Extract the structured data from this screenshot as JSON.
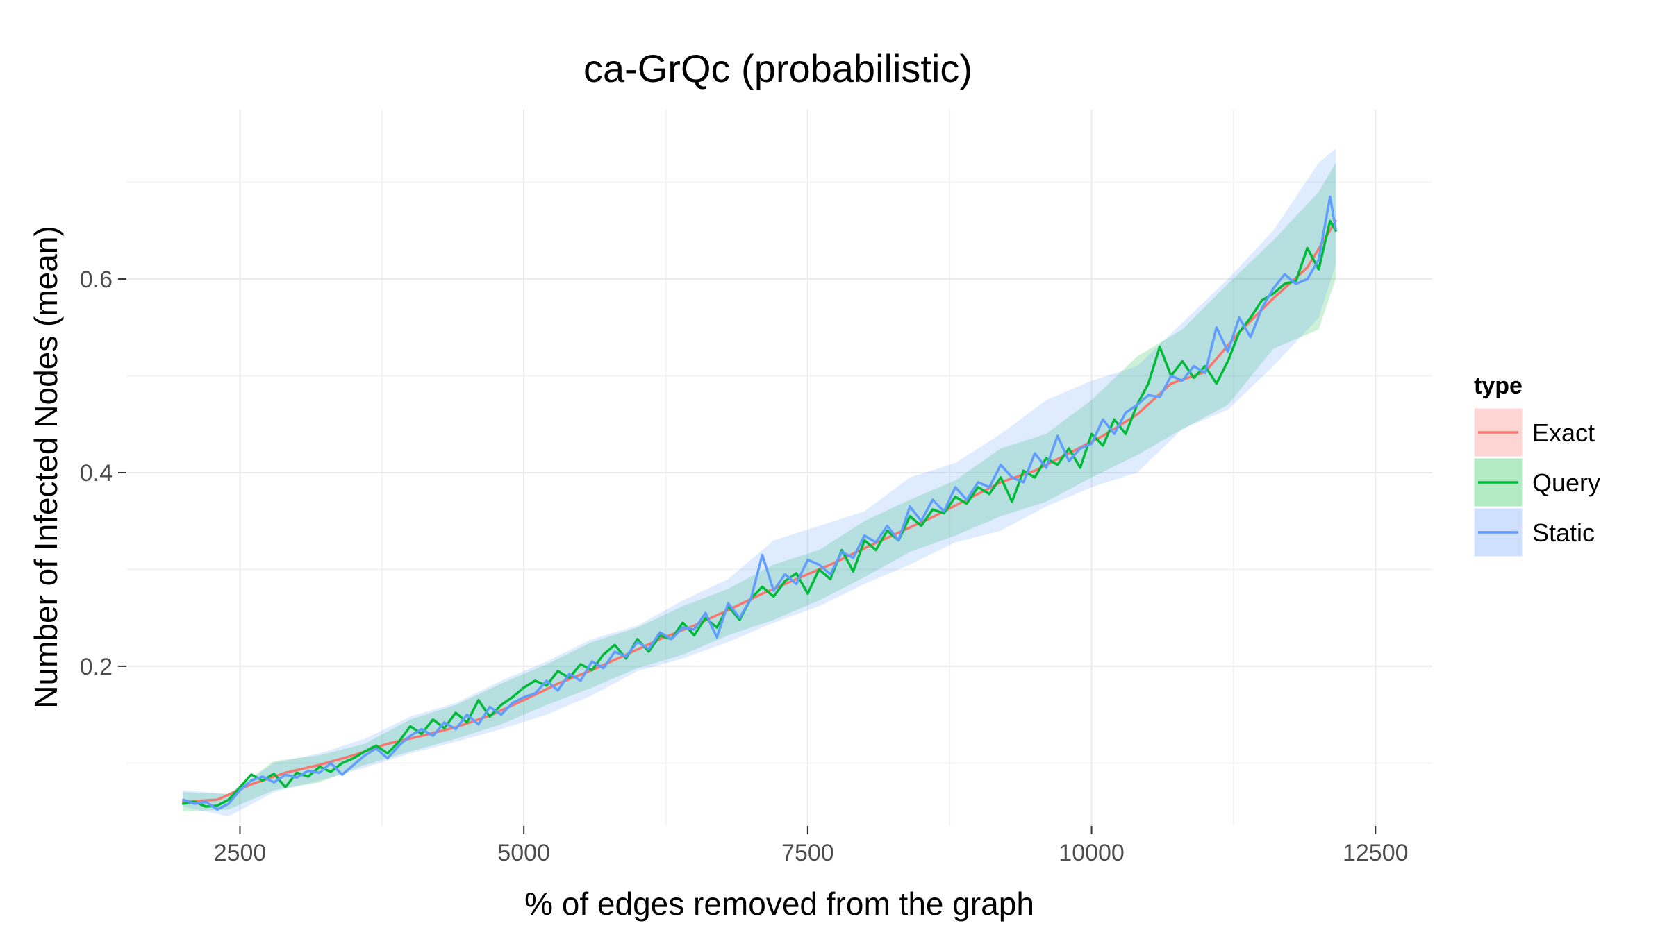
{
  "chart_data": {
    "type": "line",
    "title": "ca-GrQc (probabilistic)",
    "xlabel": "% of edges removed from the graph",
    "ylabel": "Number of Infected Nodes (mean)",
    "xlim": [
      1500,
      13000
    ],
    "ylim": [
      0.035,
      0.775
    ],
    "x_ticks": [
      2500,
      5000,
      7500,
      10000,
      12500
    ],
    "x_tick_labels": [
      "2500",
      "5000",
      "7500",
      "10000",
      "12500"
    ],
    "y_ticks": [
      0.2,
      0.4,
      0.6
    ],
    "y_tick_labels": [
      "0.2",
      "0.4",
      "0.6"
    ],
    "grid": true,
    "legend": {
      "title": "type",
      "position": "right"
    },
    "colors": {
      "Exact": "#F8766D",
      "Query": "#00BA38",
      "Static": "#619CFF"
    },
    "series": [
      {
        "name": "Exact",
        "x": [
          2000,
          2300,
          2600,
          2900,
          3200,
          3500,
          3800,
          4100,
          4400,
          4700,
          5000,
          5300,
          5600,
          5900,
          6200,
          6500,
          6800,
          7100,
          7400,
          7700,
          8000,
          8300,
          8600,
          8900,
          9200,
          9500,
          9800,
          10100,
          10400,
          10700,
          11000,
          11300,
          11600,
          11900,
          12150
        ],
        "y": [
          0.06,
          0.062,
          0.078,
          0.09,
          0.098,
          0.108,
          0.12,
          0.128,
          0.137,
          0.149,
          0.165,
          0.182,
          0.196,
          0.212,
          0.228,
          0.242,
          0.258,
          0.275,
          0.29,
          0.305,
          0.322,
          0.338,
          0.354,
          0.372,
          0.39,
          0.402,
          0.42,
          0.438,
          0.46,
          0.492,
          0.504,
          0.545,
          0.58,
          0.612,
          0.66
        ]
      },
      {
        "name": "Query",
        "x": [
          2000,
          2100,
          2200,
          2300,
          2400,
          2500,
          2600,
          2700,
          2800,
          2900,
          3000,
          3100,
          3200,
          3300,
          3400,
          3500,
          3600,
          3700,
          3800,
          3900,
          4000,
          4100,
          4200,
          4300,
          4400,
          4500,
          4600,
          4700,
          4800,
          4900,
          5000,
          5100,
          5200,
          5300,
          5400,
          5500,
          5600,
          5700,
          5800,
          5900,
          6000,
          6100,
          6200,
          6300,
          6400,
          6500,
          6600,
          6700,
          6800,
          6900,
          7000,
          7100,
          7200,
          7300,
          7400,
          7500,
          7600,
          7700,
          7800,
          7900,
          8000,
          8100,
          8200,
          8300,
          8400,
          8500,
          8600,
          8700,
          8800,
          8900,
          9000,
          9100,
          9200,
          9300,
          9400,
          9500,
          9600,
          9700,
          9800,
          9900,
          10000,
          10100,
          10200,
          10300,
          10400,
          10500,
          10600,
          10700,
          10800,
          10900,
          11000,
          11100,
          11200,
          11300,
          11400,
          11500,
          11600,
          11700,
          11800,
          11900,
          12000,
          12100,
          12150
        ],
        "y": [
          0.058,
          0.06,
          0.055,
          0.056,
          0.062,
          0.075,
          0.088,
          0.082,
          0.089,
          0.075,
          0.09,
          0.086,
          0.096,
          0.091,
          0.1,
          0.105,
          0.112,
          0.118,
          0.11,
          0.122,
          0.138,
          0.13,
          0.145,
          0.136,
          0.152,
          0.142,
          0.165,
          0.148,
          0.16,
          0.168,
          0.178,
          0.185,
          0.18,
          0.195,
          0.188,
          0.202,
          0.196,
          0.212,
          0.222,
          0.208,
          0.228,
          0.215,
          0.232,
          0.228,
          0.245,
          0.232,
          0.25,
          0.24,
          0.262,
          0.248,
          0.27,
          0.282,
          0.272,
          0.288,
          0.296,
          0.275,
          0.3,
          0.29,
          0.32,
          0.298,
          0.33,
          0.32,
          0.34,
          0.33,
          0.355,
          0.345,
          0.362,
          0.358,
          0.375,
          0.368,
          0.385,
          0.378,
          0.395,
          0.37,
          0.402,
          0.395,
          0.415,
          0.408,
          0.425,
          0.405,
          0.44,
          0.428,
          0.455,
          0.44,
          0.47,
          0.492,
          0.53,
          0.5,
          0.515,
          0.498,
          0.51,
          0.492,
          0.515,
          0.545,
          0.56,
          0.578,
          0.585,
          0.595,
          0.598,
          0.632,
          0.61,
          0.66,
          0.65
        ]
      },
      {
        "name": "Static",
        "x": [
          2000,
          2100,
          2200,
          2300,
          2400,
          2500,
          2600,
          2700,
          2800,
          2900,
          3000,
          3100,
          3200,
          3300,
          3400,
          3500,
          3600,
          3700,
          3800,
          3900,
          4000,
          4100,
          4200,
          4300,
          4400,
          4500,
          4600,
          4700,
          4800,
          4900,
          5000,
          5100,
          5200,
          5300,
          5400,
          5500,
          5600,
          5700,
          5800,
          5900,
          6000,
          6100,
          6200,
          6300,
          6400,
          6500,
          6600,
          6700,
          6800,
          6900,
          7000,
          7100,
          7200,
          7300,
          7400,
          7500,
          7600,
          7700,
          7800,
          7900,
          8000,
          8100,
          8200,
          8300,
          8400,
          8500,
          8600,
          8700,
          8800,
          8900,
          9000,
          9100,
          9200,
          9300,
          9400,
          9500,
          9600,
          9700,
          9800,
          9900,
          10000,
          10100,
          10200,
          10300,
          10400,
          10500,
          10600,
          10700,
          10800,
          10900,
          11000,
          11100,
          11200,
          11300,
          11400,
          11500,
          11600,
          11700,
          11800,
          11900,
          12000,
          12100,
          12150
        ],
        "y": [
          0.062,
          0.058,
          0.06,
          0.052,
          0.058,
          0.072,
          0.082,
          0.086,
          0.08,
          0.088,
          0.085,
          0.092,
          0.09,
          0.1,
          0.088,
          0.098,
          0.108,
          0.115,
          0.105,
          0.118,
          0.128,
          0.135,
          0.128,
          0.142,
          0.135,
          0.15,
          0.14,
          0.158,
          0.15,
          0.162,
          0.168,
          0.172,
          0.185,
          0.175,
          0.192,
          0.185,
          0.205,
          0.198,
          0.215,
          0.21,
          0.225,
          0.218,
          0.235,
          0.228,
          0.24,
          0.238,
          0.255,
          0.23,
          0.265,
          0.25,
          0.27,
          0.315,
          0.278,
          0.295,
          0.285,
          0.31,
          0.305,
          0.295,
          0.318,
          0.312,
          0.335,
          0.328,
          0.345,
          0.33,
          0.365,
          0.35,
          0.372,
          0.36,
          0.385,
          0.372,
          0.39,
          0.385,
          0.408,
          0.395,
          0.39,
          0.42,
          0.405,
          0.438,
          0.412,
          0.425,
          0.43,
          0.455,
          0.44,
          0.462,
          0.47,
          0.48,
          0.478,
          0.5,
          0.495,
          0.51,
          0.503,
          0.55,
          0.525,
          0.56,
          0.54,
          0.57,
          0.59,
          0.605,
          0.595,
          0.6,
          0.62,
          0.685,
          0.652
        ]
      }
    ],
    "bands": [
      {
        "name": "Query",
        "x": [
          2000,
          2400,
          2800,
          3200,
          3600,
          4000,
          4400,
          4800,
          5200,
          5600,
          6000,
          6400,
          6800,
          7200,
          7600,
          8000,
          8400,
          8800,
          9200,
          9600,
          10000,
          10400,
          10800,
          11200,
          11600,
          12000,
          12150
        ],
        "lower": [
          0.05,
          0.052,
          0.072,
          0.08,
          0.098,
          0.112,
          0.125,
          0.14,
          0.16,
          0.178,
          0.198,
          0.212,
          0.232,
          0.248,
          0.268,
          0.292,
          0.318,
          0.335,
          0.355,
          0.37,
          0.395,
          0.418,
          0.445,
          0.47,
          0.528,
          0.548,
          0.6
        ],
        "upper": [
          0.07,
          0.068,
          0.102,
          0.108,
          0.12,
          0.145,
          0.16,
          0.182,
          0.202,
          0.225,
          0.24,
          0.262,
          0.28,
          0.305,
          0.32,
          0.35,
          0.372,
          0.392,
          0.425,
          0.44,
          0.475,
          0.52,
          0.548,
          0.595,
          0.64,
          0.69,
          0.72
        ]
      },
      {
        "name": "Static",
        "x": [
          2000,
          2400,
          2800,
          3200,
          3600,
          4000,
          4400,
          4800,
          5200,
          5600,
          6000,
          6400,
          6800,
          7200,
          7600,
          8000,
          8400,
          8800,
          9200,
          9600,
          10000,
          10400,
          10800,
          11200,
          11600,
          12000,
          12150
        ],
        "lower": [
          0.055,
          0.045,
          0.07,
          0.082,
          0.095,
          0.11,
          0.122,
          0.135,
          0.15,
          0.17,
          0.195,
          0.208,
          0.225,
          0.245,
          0.262,
          0.285,
          0.305,
          0.328,
          0.34,
          0.365,
          0.385,
          0.4,
          0.445,
          0.465,
          0.51,
          0.56,
          0.615
        ],
        "upper": [
          0.072,
          0.068,
          0.1,
          0.11,
          0.125,
          0.148,
          0.162,
          0.185,
          0.205,
          0.228,
          0.242,
          0.268,
          0.29,
          0.33,
          0.345,
          0.36,
          0.395,
          0.41,
          0.44,
          0.475,
          0.495,
          0.51,
          0.555,
          0.6,
          0.65,
          0.72,
          0.735
        ]
      }
    ]
  }
}
